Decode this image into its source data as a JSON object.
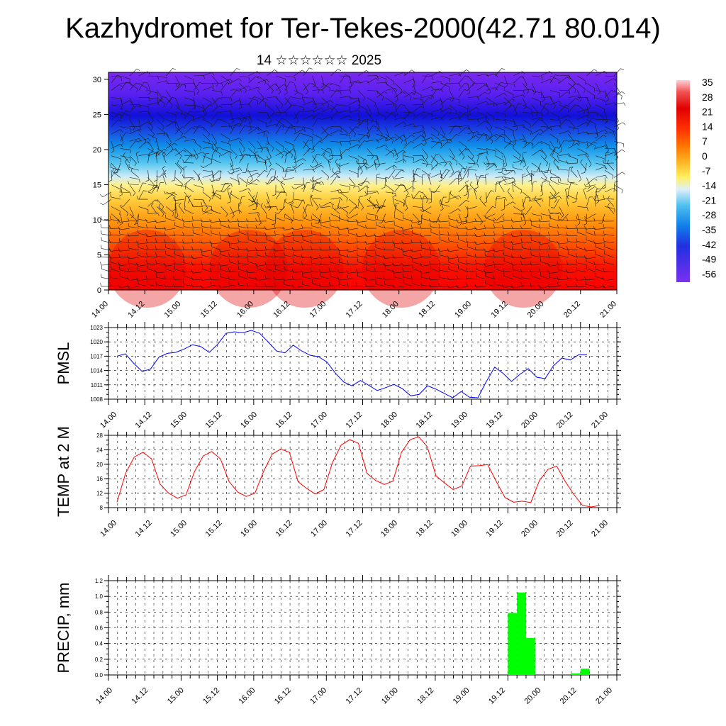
{
  "title": "Kazhydromet for Ter-Tekes-2000(42.71 80.014)",
  "subtitle": "14 ☆☆☆☆☆☆ 2025",
  "x_tick_labels": [
    "14.00",
    "14.12",
    "15.00",
    "15.12",
    "16.00",
    "16.12",
    "17.00",
    "17.12",
    "18.00",
    "18.12",
    "19.00",
    "19.12",
    "20.00",
    "20.12",
    "21.00"
  ],
  "colorbar": {
    "labels": [
      "35",
      "28",
      "21",
      "14",
      "7",
      "0",
      "-7",
      "-14",
      "-21",
      "-28",
      "-35",
      "-42",
      "-49",
      "-56"
    ]
  },
  "chart_data": [
    {
      "type": "heatmap",
      "name": "temperature-wind-cross-section",
      "y_ticks": [
        0,
        5,
        10,
        15,
        20,
        25,
        30
      ],
      "ylim": [
        0,
        31
      ],
      "x_steps": 14,
      "note_units": "temperature colour scale -56 to 35"
    },
    {
      "type": "line",
      "ylabel": "PMSL",
      "ylim": [
        1008,
        1023
      ],
      "y_ticks": [
        1008,
        1011,
        1014,
        1017,
        1020,
        1023
      ],
      "color": "#0000ff",
      "values": [
        1017,
        1017.5,
        1015.5,
        1013.8,
        1014.3,
        1016.8,
        1017.6,
        1017.8,
        1018.5,
        1019.4,
        1019,
        1017.8,
        1019.5,
        1021.8,
        1022.1,
        1021.9,
        1022.4,
        1021.8,
        1020,
        1018.1,
        1017.7,
        1019.3,
        1018.1,
        1017.2,
        1016.9,
        1015.8,
        1013.5,
        1011.6,
        1010.8,
        1011.9,
        1010.9,
        1009.8,
        1010.4,
        1011.1,
        1010.2,
        1008.7,
        1009,
        1010.8,
        1010.1,
        1009.2,
        1008.3,
        1009.6,
        1008.4,
        1008.3,
        1011.7,
        1014.7,
        1013.4,
        1011.7,
        1013.2,
        1014.4,
        1012.6,
        1012.3,
        1015,
        1016.6,
        1016.2,
        1017.3,
        1017.3
      ],
      "x_start": 0,
      "x_step": 3
    },
    {
      "type": "line",
      "ylabel": "TEMP at 2 M",
      "ylim": [
        8,
        28
      ],
      "y_ticks": [
        8,
        12,
        16,
        20,
        24,
        28
      ],
      "color": "#ff0000",
      "values": [
        9.5,
        17.5,
        22,
        23.3,
        21.5,
        14.5,
        12,
        10.6,
        11.5,
        18,
        22.3,
        23.5,
        21.5,
        15.2,
        12.3,
        11.1,
        12,
        18,
        22.8,
        24.2,
        23.3,
        15.2,
        13.3,
        11.8,
        13,
        20.5,
        25.3,
        26.8,
        25.8,
        17.5,
        15.5,
        14.4,
        15.3,
        23.3,
        26.8,
        27.6,
        24.8,
        16.8,
        14.8,
        13,
        14,
        19.5,
        19.6,
        19.9,
        15.2,
        10.8,
        9.5,
        9.8,
        9.4,
        15.5,
        18.6,
        19.5,
        15.2,
        11.6,
        8.6,
        8.2,
        8.6
      ],
      "x_start": 0,
      "x_step": 3
    },
    {
      "type": "bar",
      "ylabel": "PRECIP, mm",
      "ylim": [
        0,
        1.2
      ],
      "y_ticks": [
        "0.0",
        "0.2",
        "0.4",
        "0.6",
        "0.8",
        "1.0",
        "1.2"
      ],
      "color": "#00ff00",
      "bars": [
        {
          "x": 0,
          "value": 0
        },
        {
          "x": 3,
          "value": 0
        },
        {
          "x": 6,
          "value": 0
        },
        {
          "x": 9,
          "value": 0
        },
        {
          "x": 12,
          "value": 0
        },
        {
          "x": 15,
          "value": 0
        },
        {
          "x": 18,
          "value": 0
        },
        {
          "x": 21,
          "value": 0
        },
        {
          "x": 24,
          "value": 0
        },
        {
          "x": 27,
          "value": 0
        },
        {
          "x": 30,
          "value": 0
        },
        {
          "x": 33,
          "value": 0
        },
        {
          "x": 36,
          "value": 0
        },
        {
          "x": 39,
          "value": 0
        },
        {
          "x": 42,
          "value": 0
        },
        {
          "x": 45,
          "value": 0
        },
        {
          "x": 48,
          "value": 0
        },
        {
          "x": 51,
          "value": 0
        },
        {
          "x": 54,
          "value": 0
        },
        {
          "x": 57,
          "value": 0
        },
        {
          "x": 60,
          "value": 0
        },
        {
          "x": 63,
          "value": 0
        },
        {
          "x": 66,
          "value": 0
        },
        {
          "x": 69,
          "value": 0
        },
        {
          "x": 72,
          "value": 0
        },
        {
          "x": 75,
          "value": 0
        },
        {
          "x": 78,
          "value": 0
        },
        {
          "x": 81,
          "value": 0
        },
        {
          "x": 84,
          "value": 0
        },
        {
          "x": 87,
          "value": 0
        },
        {
          "x": 90,
          "value": 0
        },
        {
          "x": 93,
          "value": 0
        },
        {
          "x": 96,
          "value": 0
        },
        {
          "x": 99,
          "value": 0
        },
        {
          "x": 102,
          "value": 0
        },
        {
          "x": 105,
          "value": 0
        },
        {
          "x": 108,
          "value": 0
        },
        {
          "x": 111,
          "value": 0
        },
        {
          "x": 114,
          "value": 0
        },
        {
          "x": 117,
          "value": 0
        },
        {
          "x": 120,
          "value": 0
        },
        {
          "x": 123,
          "value": 0
        },
        {
          "x": 126,
          "value": 0
        },
        {
          "x": 129,
          "value": 0
        },
        {
          "x": 132,
          "value": 0.79
        },
        {
          "x": 135,
          "value": 1.05
        },
        {
          "x": 138,
          "value": 0.47
        },
        {
          "x": 141,
          "value": 0
        },
        {
          "x": 144,
          "value": 0
        },
        {
          "x": 147,
          "value": 0
        },
        {
          "x": 150,
          "value": 0
        },
        {
          "x": 153,
          "value": 0.02
        },
        {
          "x": 156,
          "value": 0.08
        },
        {
          "x": 159,
          "value": 0
        },
        {
          "x": 162,
          "value": 0
        },
        {
          "x": 165,
          "value": 0
        }
      ],
      "x_range_hours": 168
    }
  ]
}
